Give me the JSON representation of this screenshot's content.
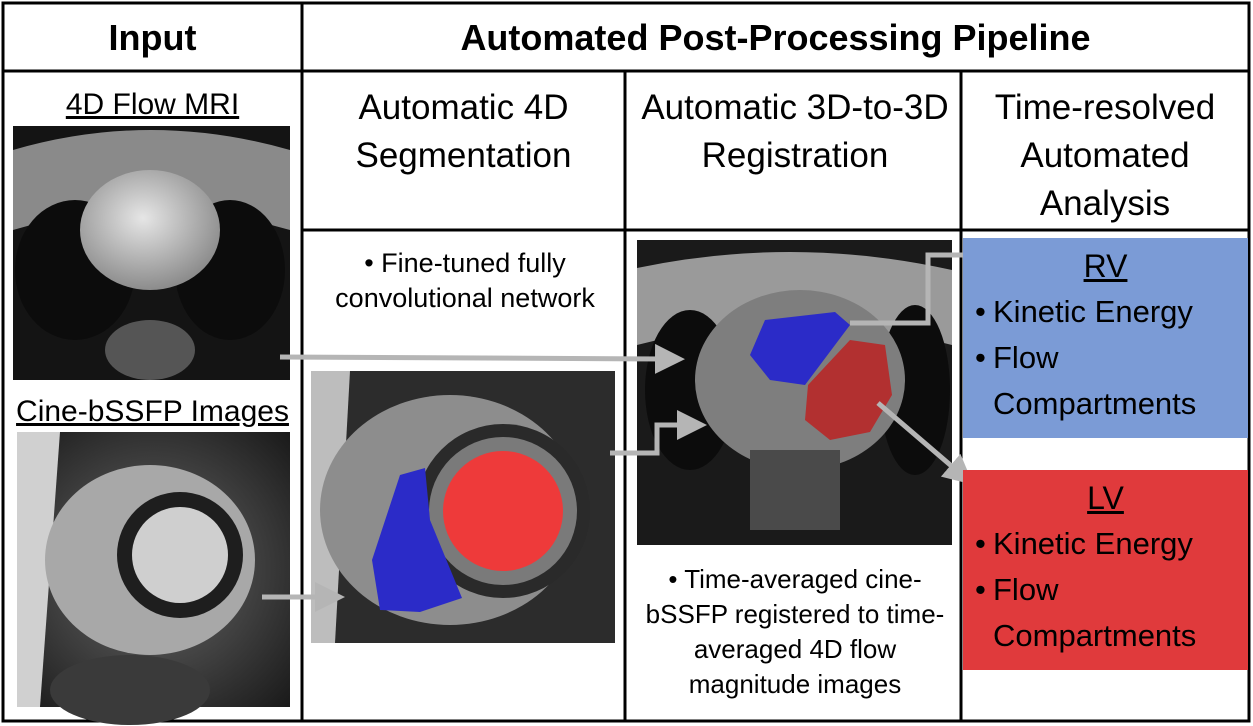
{
  "headers": {
    "input": "Input",
    "pipeline": "Automated Post-Processing Pipeline"
  },
  "columns": {
    "segmentation": "Automatic 4D Segmentation",
    "registration": "Automatic 3D-to-3D Registration",
    "analysis": "Time-resolved Automated Analysis"
  },
  "inputs": {
    "flow_label": "4D Flow MRI",
    "cine_label": "Cine-bSSFP Images"
  },
  "segmentation_note": "Fine-tuned fully convolutional network",
  "registration_note": "Time-averaged cine-bSSFP registered to time-averaged 4D flow magnitude images",
  "results": {
    "rv": {
      "title": "RV",
      "items": [
        "Kinetic Energy",
        "Flow Compartments"
      ],
      "color": "#7b9bd6"
    },
    "lv": {
      "title": "LV",
      "items": [
        "Kinetic Energy",
        "Flow Compartments"
      ],
      "color": "#e03a3c"
    }
  },
  "colors": {
    "rv_mask": "#2b2bc8",
    "lv_mask": "#ee3a3a",
    "arrow": "#b5b5b5"
  }
}
